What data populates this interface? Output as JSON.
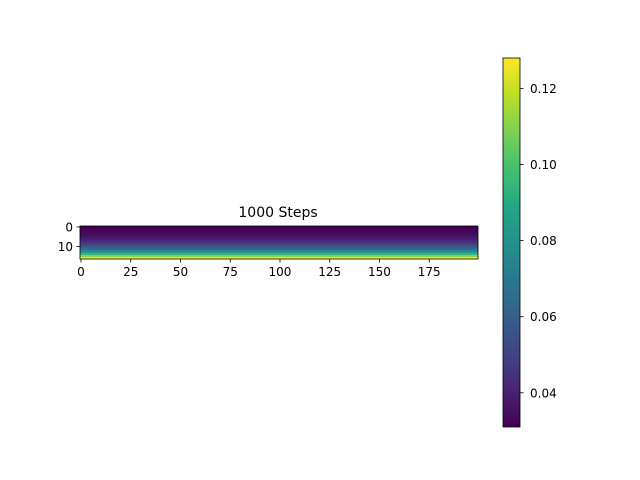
{
  "chart_data": {
    "type": "heatmap",
    "title": "1000 Steps",
    "colormap": "viridis",
    "image": {
      "rows": 17,
      "cols": 200,
      "value_profile": "increases from top row to bottom row; roughly constant along columns",
      "approx_row_values": [
        0.031,
        0.0315,
        0.032,
        0.033,
        0.034,
        0.036,
        0.038,
        0.041,
        0.045,
        0.05,
        0.056,
        0.063,
        0.072,
        0.082,
        0.095,
        0.11,
        0.128
      ]
    },
    "x_axis": {
      "ticks": [
        0,
        25,
        50,
        75,
        100,
        125,
        150,
        175
      ],
      "tick_labels": [
        "0",
        "25",
        "50",
        "75",
        "100",
        "125",
        "150",
        "175"
      ],
      "range": [
        -0.5,
        199.5
      ]
    },
    "y_axis": {
      "ticks": [
        0,
        10
      ],
      "tick_labels": [
        "0",
        "10"
      ],
      "range": [
        16.5,
        -0.5
      ],
      "inverted": true
    },
    "colorbar": {
      "range": [
        0.031,
        0.128
      ],
      "ticks": [
        0.04,
        0.06,
        0.08,
        0.1,
        0.12
      ],
      "tick_labels": [
        "0.04",
        "0.06",
        "0.08",
        "0.10",
        "0.12"
      ]
    }
  }
}
